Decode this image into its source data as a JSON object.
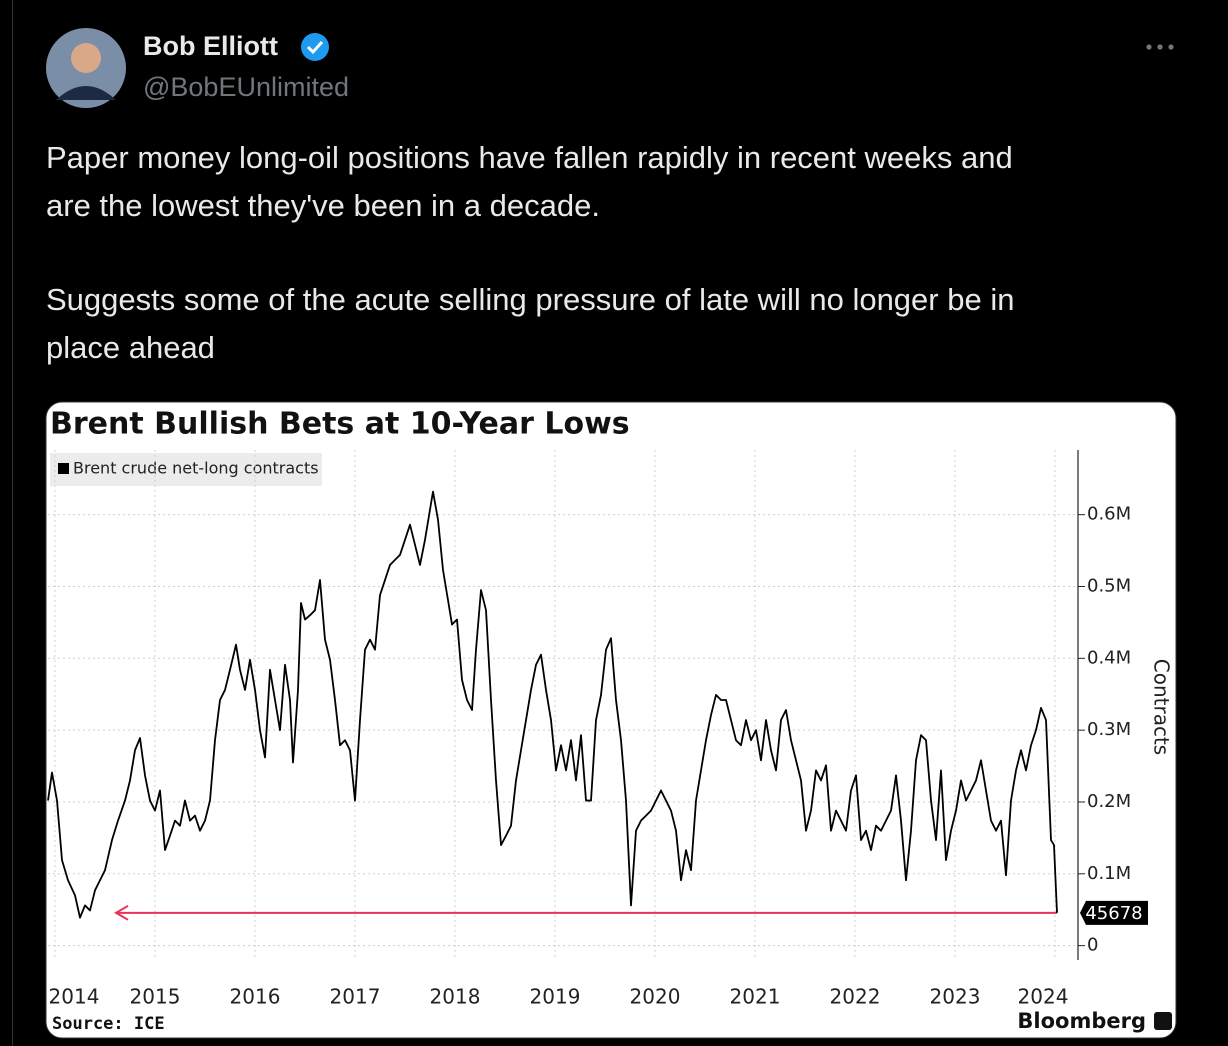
{
  "tweet": {
    "name": "Bob Elliott",
    "handle": "@BobEUnlimited",
    "lines": [
      "Paper money long-oil positions have fallen rapidly in recent weeks and",
      "are the lowest they've been in a decade.",
      "Suggests some of the acute selling pressure of late will no longer be in",
      "place ahead"
    ]
  },
  "chart_data": {
    "type": "line",
    "title": "Brent Bullish Bets at 10-Year Lows",
    "y_label": "Contracts",
    "source": "Source: ICE",
    "brand": "Bloomberg",
    "x": [
      2014.43,
      2014.47,
      2014.52,
      2014.57,
      2014.63,
      2014.7,
      2014.75,
      2014.8,
      2014.85,
      2014.9,
      2014.95,
      2015.0,
      2015.07,
      2015.13,
      2015.2,
      2015.25,
      2015.3,
      2015.35,
      2015.4,
      2015.45,
      2015.5,
      2015.55,
      2015.6,
      2015.65,
      2015.7,
      2015.75,
      2015.8,
      2015.85,
      2015.9,
      2015.95,
      2016.0,
      2016.05,
      2016.1,
      2016.15,
      2016.2,
      2016.25,
      2016.31,
      2016.35,
      2016.4,
      2016.45,
      2016.5,
      2016.55,
      2016.6,
      2016.65,
      2016.7,
      2016.75,
      2016.8,
      2016.85,
      2016.88,
      2016.93,
      2016.96,
      2017.0,
      2017.05,
      2017.1,
      2017.15,
      2017.2,
      2017.25,
      2017.3,
      2017.35,
      2017.4,
      2017.45,
      2017.5,
      2017.55,
      2017.6,
      2017.65,
      2017.7,
      2017.75,
      2017.8,
      2017.85,
      2017.9,
      2017.95,
      2018.0,
      2018.05,
      2018.1,
      2018.15,
      2018.2,
      2018.25,
      2018.28,
      2018.33,
      2018.38,
      2018.43,
      2018.47,
      2018.52,
      2018.57,
      2018.62,
      2018.67,
      2018.71,
      2018.76,
      2018.81,
      2018.86,
      2018.91,
      2018.96,
      2019.01,
      2019.06,
      2019.11,
      2019.16,
      2019.21,
      2019.26,
      2019.31,
      2019.36,
      2019.41,
      2019.46,
      2019.51,
      2019.56,
      2019.61,
      2019.66,
      2019.71,
      2019.76,
      2019.81,
      2019.86,
      2019.91,
      2019.96,
      2020.01,
      2020.06,
      2020.11,
      2020.16,
      2020.21,
      2020.26,
      2020.31,
      2020.36,
      2020.41,
      2020.46,
      2020.51,
      2020.56,
      2020.61,
      2020.66,
      2020.71,
      2020.76,
      2020.81,
      2020.86,
      2020.91,
      2020.96,
      2021.01,
      2021.06,
      2021.11,
      2021.16,
      2021.21,
      2021.26,
      2021.31,
      2021.36,
      2021.41,
      2021.46,
      2021.51,
      2021.56,
      2021.61,
      2021.66,
      2021.71,
      2021.76,
      2021.81,
      2021.86,
      2021.91,
      2021.96,
      2022.01,
      2022.06,
      2022.11,
      2022.16,
      2022.21,
      2022.26,
      2022.31,
      2022.36,
      2022.41,
      2022.46,
      2022.51,
      2022.56,
      2022.61,
      2022.66,
      2022.71,
      2022.76,
      2022.81,
      2022.86,
      2022.91,
      2022.96,
      2023.01,
      2023.06,
      2023.11,
      2023.16,
      2023.21,
      2023.26,
      2023.31,
      2023.36,
      2023.41,
      2023.46,
      2023.51,
      2023.56,
      2023.61,
      2023.66,
      2023.71,
      2023.76,
      2023.81,
      2023.86,
      2023.91,
      2023.96,
      2024.01,
      2024.06,
      2024.11,
      2024.16,
      2024.21,
      2024.26,
      2024.31,
      2024.36,
      2024.41,
      2024.46,
      2024.49,
      2024.52
    ],
    "series": [
      {
        "name": "Brent crude net-long contracts",
        "color": "#000000",
        "values": [
          202000,
          241000,
          202000,
          119000,
          91000,
          70000,
          39000,
          56000,
          49000,
          77000,
          91000,
          105000,
          147000,
          174000,
          202000,
          230000,
          272000,
          289000,
          237000,
          202000,
          188000,
          216000,
          133000,
          153000,
          174000,
          167000,
          202000,
          174000,
          181000,
          160000,
          174000,
          202000,
          286000,
          342000,
          356000,
          384000,
          419000,
          384000,
          356000,
          398000,
          356000,
          300000,
          262000,
          384000,
          342000,
          300000,
          391000,
          342000,
          255000,
          356000,
          477000,
          454000,
          460000,
          467000,
          509000,
          426000,
          398000,
          342000,
          279000,
          286000,
          272000,
          202000,
          314000,
          412000,
          426000,
          412000,
          488000,
          509000,
          530000,
          537000,
          544000,
          565000,
          586000,
          558000,
          530000,
          565000,
          607000,
          632000,
          593000,
          523000,
          481000,
          447000,
          454000,
          370000,
          342000,
          328000,
          412000,
          495000,
          467000,
          342000,
          230000,
          140000,
          153000,
          167000,
          230000,
          272000,
          314000,
          356000,
          391000,
          405000,
          356000,
          314000,
          244000,
          279000,
          244000,
          286000,
          230000,
          293000,
          202000,
          202000,
          314000,
          349000,
          412000,
          428000,
          342000,
          286000,
          202000,
          56000,
          160000,
          174000,
          181000,
          188000,
          202000,
          216000,
          202000,
          188000,
          160000,
          91000,
          133000,
          105000,
          202000,
          244000,
          286000,
          321000,
          349000,
          342000,
          342000,
          314000,
          286000,
          279000,
          314000,
          286000,
          300000,
          258000,
          314000,
          272000,
          244000,
          314000,
          328000,
          286000,
          258000,
          230000,
          160000,
          188000,
          244000,
          230000,
          251000,
          160000,
          188000,
          174000,
          160000,
          216000,
          237000,
          147000,
          160000,
          133000,
          167000,
          160000,
          174000,
          188000,
          237000,
          174000,
          91000,
          160000,
          258000,
          293000,
          286000,
          202000,
          147000,
          244000,
          119000,
          160000,
          188000,
          230000,
          202000,
          216000,
          230000,
          258000,
          216000,
          174000,
          160000,
          174000,
          98000,
          202000,
          244000,
          272000,
          244000,
          279000,
          300000,
          331000,
          314000,
          147000,
          140000,
          45678
        ]
      }
    ],
    "xlim": [
      2014.43,
      2024.73
    ],
    "xticks": [
      {
        "value": 2014.5,
        "label": "2014"
      },
      {
        "value": 2015.5,
        "label": "2015"
      },
      {
        "value": 2016.5,
        "label": "2016"
      },
      {
        "value": 2017.5,
        "label": "2017"
      },
      {
        "value": 2018.5,
        "label": "2018"
      },
      {
        "value": 2019.5,
        "label": "2019"
      },
      {
        "value": 2020.5,
        "label": "2020"
      },
      {
        "value": 2021.5,
        "label": "2021"
      },
      {
        "value": 2022.5,
        "label": "2022"
      },
      {
        "value": 2023.5,
        "label": "2023"
      },
      {
        "value": 2024.5,
        "label": "2024"
      }
    ],
    "ylim": [
      -20000,
      690000
    ],
    "yticks": [
      0,
      {
        "value": 100000,
        "label": "0.1M"
      },
      {
        "value": 200000,
        "label": "0.2M"
      },
      {
        "value": 300000,
        "label": "0.3M"
      },
      {
        "value": 400000,
        "label": "0.4M"
      },
      {
        "value": 500000,
        "label": "0.5M"
      },
      {
        "value": 600000,
        "label": "0.6M"
      }
    ],
    "grid": true,
    "annotation_color": "#e8335a"
  }
}
